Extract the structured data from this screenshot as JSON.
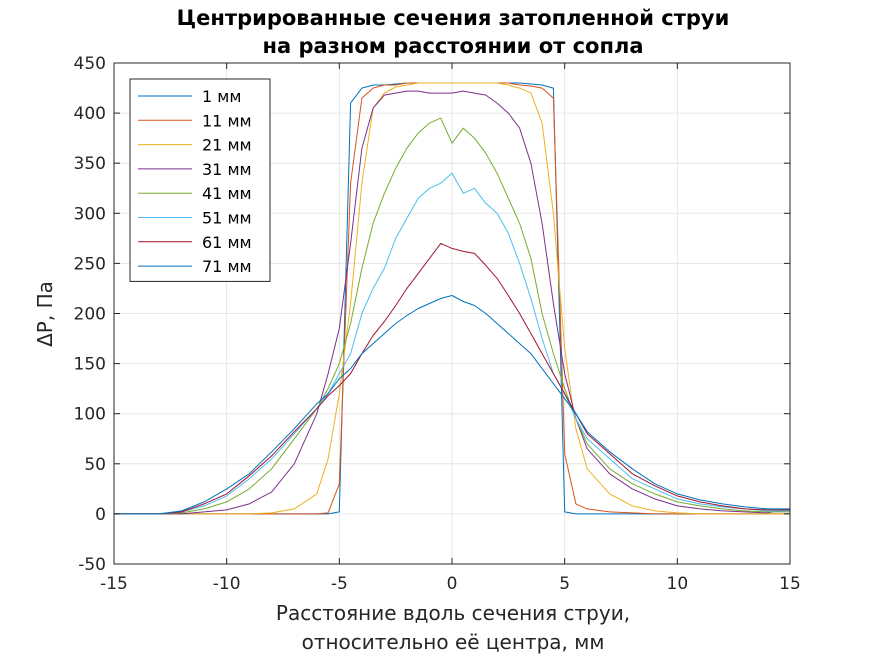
{
  "chart_data": {
    "type": "line",
    "title": [
      "Центрированные сечения затопленной струи",
      "на разном расстоянии от сопла"
    ],
    "xlabel": [
      "Расстояние вдоль сечения струи,",
      "относительно её центра, мм"
    ],
    "ylabel": "ΔP, Па",
    "xlim": [
      -15,
      15
    ],
    "ylim": [
      -50,
      450
    ],
    "xticks": [
      -15,
      -10,
      -5,
      0,
      5,
      10,
      15
    ],
    "yticks": [
      -50,
      0,
      50,
      100,
      150,
      200,
      250,
      300,
      350,
      400,
      450
    ],
    "grid": true,
    "legend_position": "top-left",
    "x": [
      -15,
      -14,
      -13,
      -12,
      -11,
      -10,
      -9,
      -8,
      -7,
      -6,
      -5.5,
      -5,
      -4.5,
      -4,
      -3.5,
      -3,
      -2.5,
      -2,
      -1.5,
      -1,
      -0.5,
      0,
      0.5,
      1,
      1.5,
      2,
      2.5,
      3,
      3.5,
      4,
      4.5,
      5,
      5.5,
      6,
      7,
      8,
      9,
      10,
      11,
      12,
      13,
      14,
      15
    ],
    "series": [
      {
        "name": "1 мм",
        "color": "#0072BD",
        "values": [
          0,
          0,
          0,
          0,
          0,
          0,
          0,
          0,
          0,
          0,
          0,
          2,
          410,
          425,
          428,
          428,
          429,
          430,
          430,
          430,
          430,
          430,
          430,
          430,
          430,
          430,
          430,
          430,
          429,
          428,
          425,
          2,
          0,
          0,
          0,
          0,
          0,
          0,
          0,
          0,
          0,
          0,
          0
        ]
      },
      {
        "name": "11 мм",
        "color": "#D95319",
        "values": [
          0,
          0,
          0,
          0,
          0,
          0,
          0,
          0,
          0,
          0,
          1,
          30,
          330,
          415,
          425,
          428,
          428,
          430,
          430,
          430,
          430,
          430,
          430,
          430,
          430,
          430,
          430,
          428,
          427,
          425,
          415,
          60,
          10,
          5,
          2,
          1,
          0,
          0,
          0,
          0,
          0,
          0,
          0
        ]
      },
      {
        "name": "21 мм",
        "color": "#EDB120",
        "values": [
          0,
          0,
          0,
          0,
          0,
          0,
          0,
          1,
          5,
          20,
          55,
          120,
          210,
          330,
          405,
          420,
          426,
          428,
          430,
          430,
          430,
          430,
          430,
          430,
          430,
          430,
          428,
          425,
          420,
          390,
          300,
          165,
          85,
          45,
          20,
          8,
          3,
          1,
          0,
          0,
          0,
          0,
          0
        ]
      },
      {
        "name": "31 мм",
        "color": "#7E2F8E",
        "values": [
          0,
          0,
          0,
          0,
          2,
          4,
          10,
          22,
          50,
          100,
          140,
          185,
          270,
          365,
          405,
          418,
          420,
          422,
          422,
          420,
          420,
          420,
          422,
          420,
          418,
          410,
          400,
          385,
          350,
          290,
          210,
          140,
          95,
          65,
          40,
          25,
          15,
          8,
          5,
          3,
          2,
          1,
          5
        ]
      },
      {
        "name": "41 мм",
        "color": "#77AC30",
        "values": [
          0,
          0,
          0,
          1,
          5,
          12,
          25,
          45,
          75,
          105,
          125,
          150,
          190,
          245,
          290,
          320,
          345,
          365,
          380,
          390,
          395,
          370,
          385,
          375,
          360,
          340,
          315,
          290,
          255,
          200,
          160,
          125,
          95,
          70,
          45,
          30,
          20,
          12,
          8,
          5,
          3,
          2,
          2
        ]
      },
      {
        "name": "51 мм",
        "color": "#4DBEEE",
        "values": [
          0,
          0,
          0,
          2,
          8,
          18,
          35,
          55,
          80,
          105,
          120,
          140,
          160,
          200,
          225,
          245,
          275,
          295,
          315,
          325,
          330,
          340,
          320,
          325,
          310,
          300,
          280,
          250,
          215,
          175,
          140,
          120,
          95,
          75,
          55,
          35,
          25,
          15,
          10,
          7,
          5,
          3,
          3
        ]
      },
      {
        "name": "61 мм",
        "color": "#A2142F",
        "values": [
          0,
          0,
          0,
          2,
          10,
          20,
          38,
          58,
          82,
          105,
          118,
          128,
          140,
          160,
          178,
          192,
          208,
          225,
          240,
          255,
          270,
          265,
          262,
          260,
          248,
          235,
          218,
          200,
          180,
          160,
          140,
          120,
          100,
          80,
          60,
          40,
          28,
          18,
          12,
          8,
          5,
          4,
          4
        ]
      },
      {
        "name": "71 мм",
        "color": "#0072BD",
        "values": [
          0,
          0,
          0,
          3,
          12,
          25,
          40,
          62,
          85,
          110,
          120,
          135,
          145,
          160,
          170,
          180,
          190,
          198,
          205,
          210,
          215,
          218,
          212,
          208,
          200,
          190,
          180,
          170,
          160,
          145,
          130,
          115,
          100,
          82,
          62,
          45,
          30,
          20,
          14,
          10,
          7,
          5,
          5
        ]
      }
    ]
  }
}
